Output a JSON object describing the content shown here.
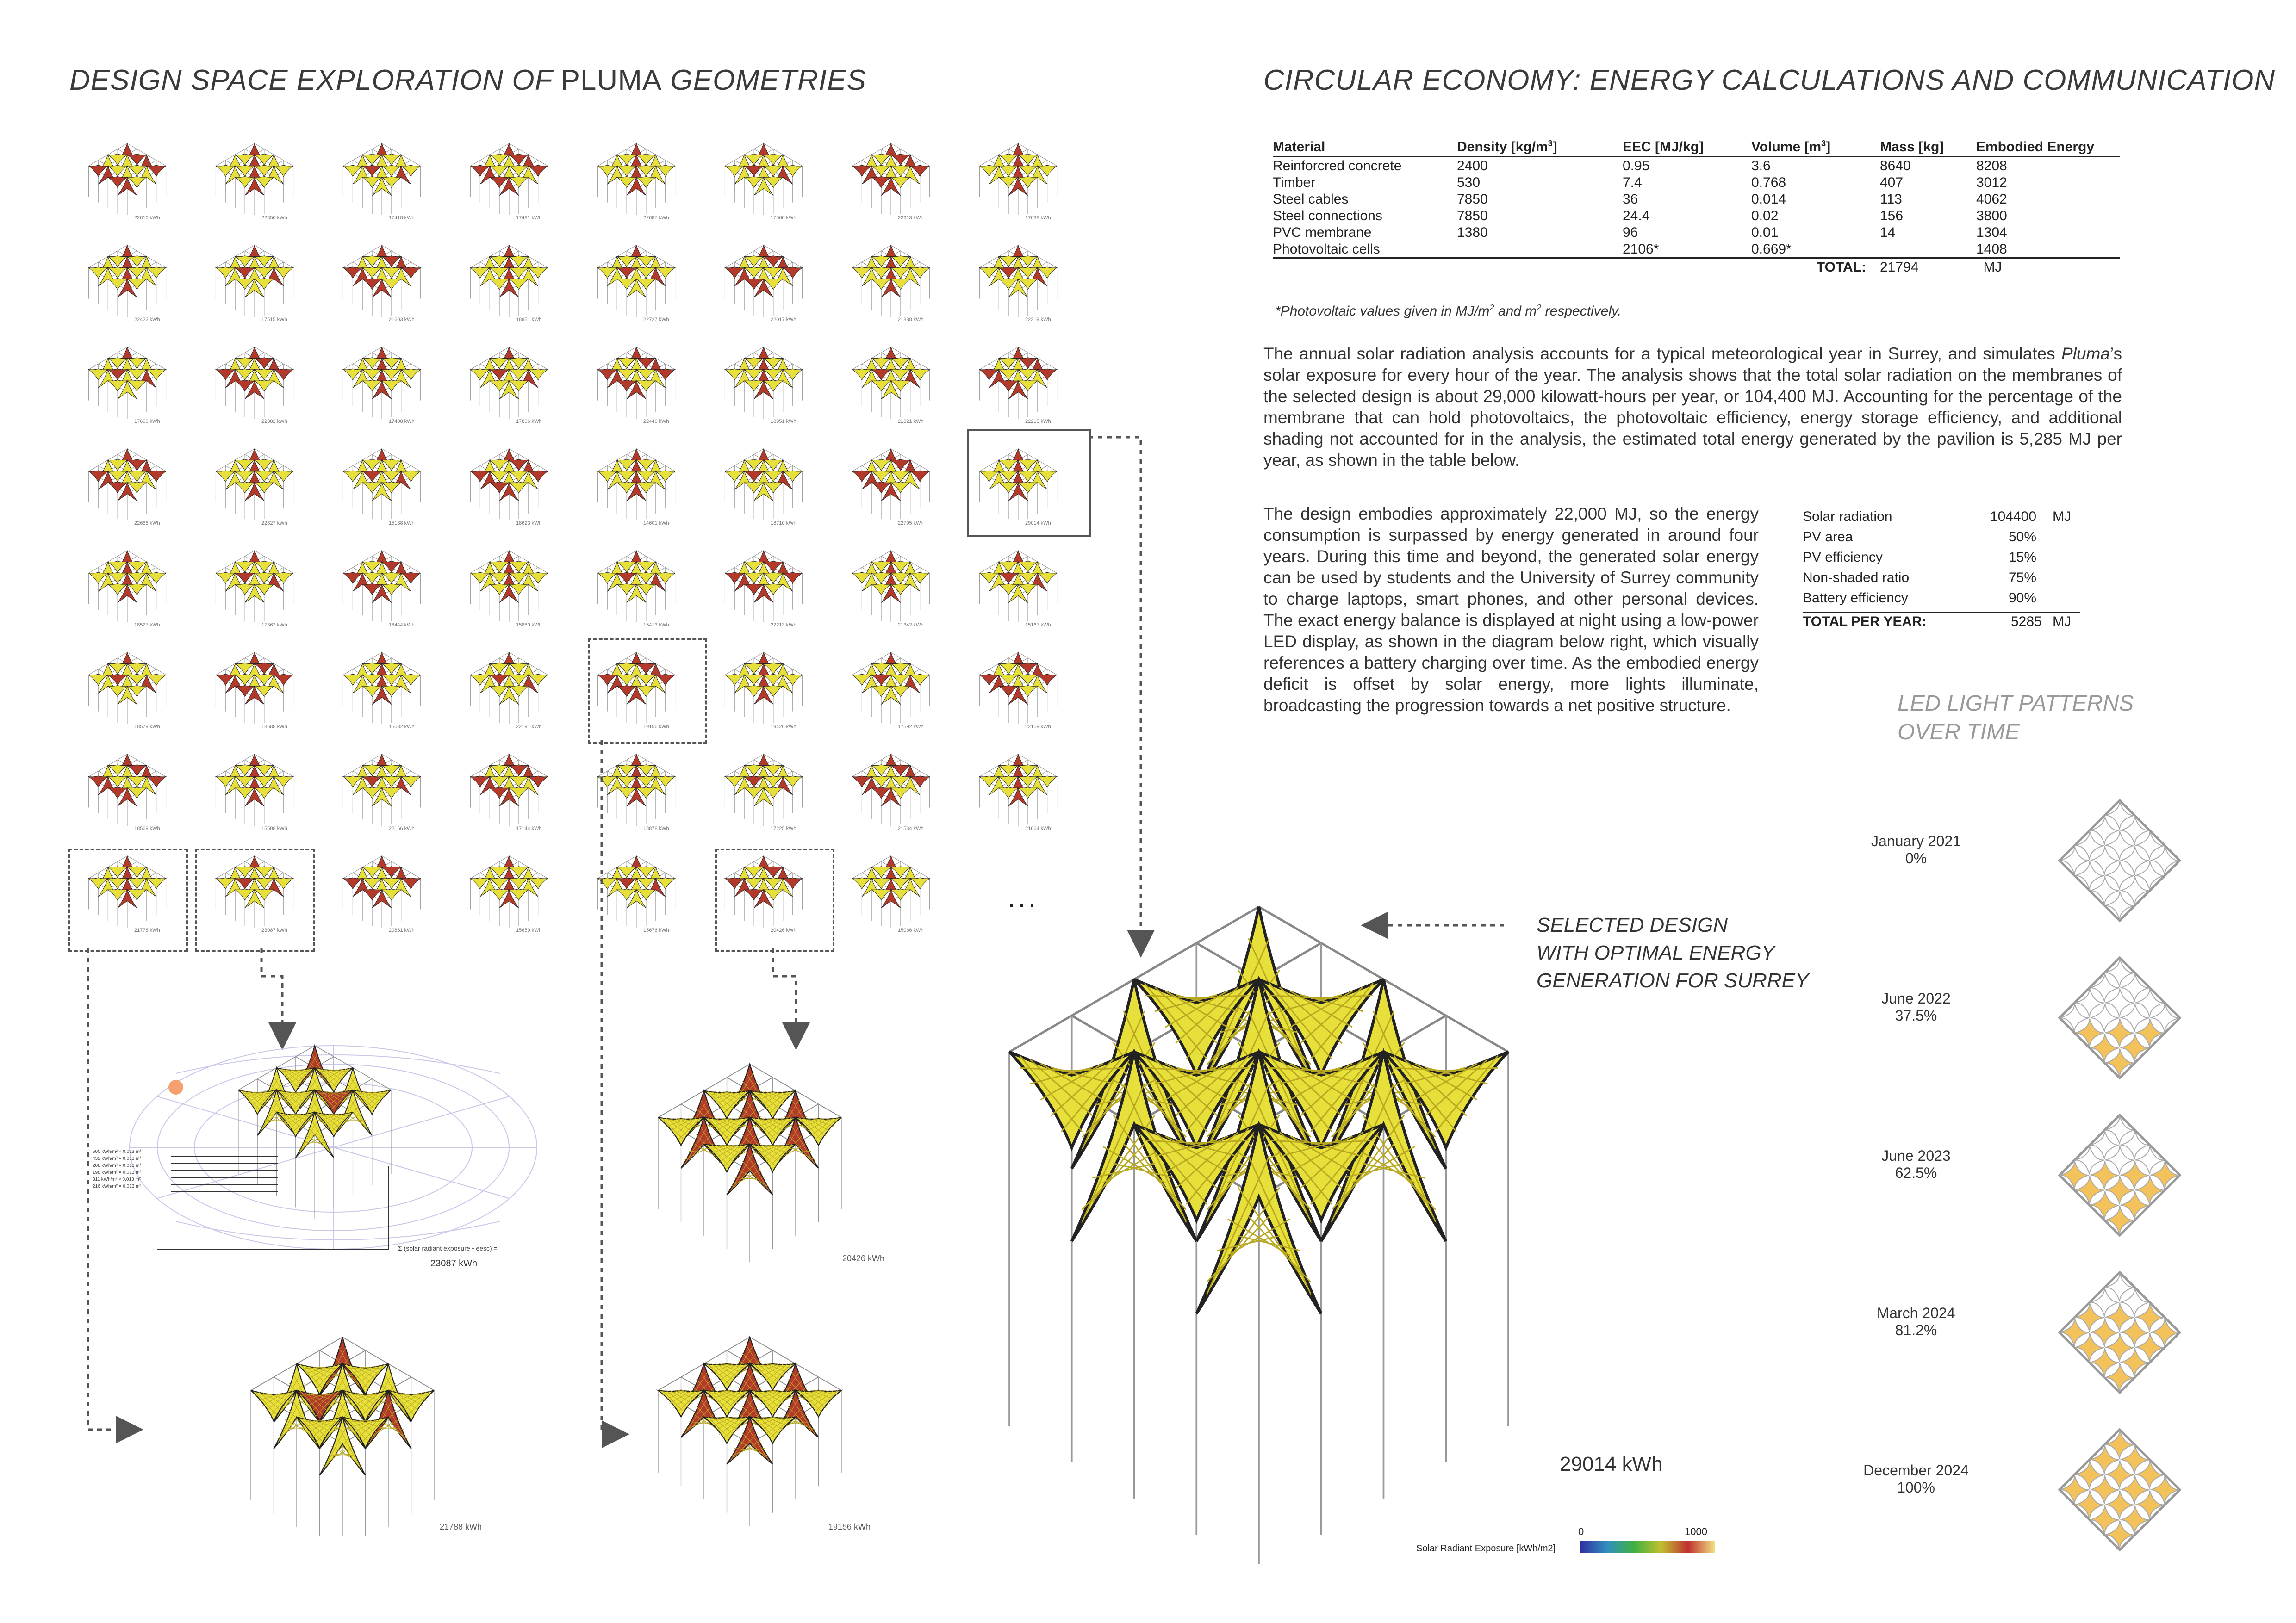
{
  "left_title": {
    "part1": "DESIGN SPACE EXPLORATION OF ",
    "part2": "PLUMA",
    "part3": " GEOMETRIES"
  },
  "right_title": "CIRCULAR ECONOMY: ENERGY CALCULATIONS AND COMMUNICATION",
  "thumb_labels": [
    [
      "22610 kWh",
      "22850 kWh",
      "17418 kWh",
      "17481 kWh",
      "22687 kWh",
      "17560 kWh",
      "22613 kWh",
      "17638 kWh"
    ],
    [
      "22422 kWh",
      "17515 kWh",
      "21603 kWh",
      "18951 kWh",
      "22727 kWh",
      "22017 kWh",
      "21888 kWh",
      "22219 kWh"
    ],
    [
      "17660 kWh",
      "22382 kWh",
      "17408 kWh",
      "17806 kWh",
      "22446 kWh",
      "18951 kWh",
      "21821 kWh",
      "22215 kWh"
    ],
    [
      "22686 kWh",
      "22627 kWh",
      "15188 kWh",
      "18623 kWh",
      "14601 kWh",
      "18710 kWh",
      "22795 kWh",
      "29014 kWh"
    ],
    [
      "18527 kWh",
      "17362 kWh",
      "18444 kWh",
      "15880 kWh",
      "15413 kWh",
      "22213 kWh",
      "21342 kWh",
      "15167 kWh"
    ],
    [
      "18579 kWh",
      "18688 kWh",
      "15032 kWh",
      "22191 kWh",
      "19156 kWh",
      "19426 kWh",
      "17592 kWh",
      "22159 kWh"
    ],
    [
      "18569 kWh",
      "15508 kWh",
      "22166 kWh",
      "17144 kWh",
      "18878 kWh",
      "17225 kWh",
      "21534 kWh",
      "21664 kWh"
    ],
    [
      "21778 kWh",
      "23087 kWh",
      "20881 kWh",
      "15659 kWh",
      "15676 kWh",
      "20426 kWh",
      "15066 kWh",
      ""
    ]
  ],
  "ellipsis": ". . .",
  "material_table": {
    "headers": [
      "Material",
      "Density [kg/m",
      "3",
      "]",
      "EEC [MJ/kg]",
      "Volume [m",
      "3",
      "]",
      "Mass [kg]",
      "Embodied Energy"
    ],
    "rows": [
      {
        "material": "Reinforcred concrete",
        "density": "2400",
        "eec": "0.95",
        "volume": "3.6",
        "mass": "8640",
        "energy": "8208"
      },
      {
        "material": "Timber",
        "density": "530",
        "eec": "7.4",
        "volume": "0.768",
        "mass": "407",
        "energy": "3012"
      },
      {
        "material": "Steel cables",
        "density": "7850",
        "eec": "36",
        "volume": "0.014",
        "mass": "113",
        "energy": "4062"
      },
      {
        "material": "Steel connections",
        "density": "7850",
        "eec": "24.4",
        "volume": "0.02",
        "mass": "156",
        "energy": "3800"
      },
      {
        "material": "PVC membrane",
        "density": "1380",
        "eec": "96",
        "volume": "0.01",
        "mass": "14",
        "energy": "1304"
      },
      {
        "material": "Photovoltaic cells",
        "density": "",
        "eec": "2106*",
        "volume": "0.669*",
        "mass": "",
        "energy": "1408"
      }
    ],
    "total_label": "TOTAL:",
    "total_value": "21794",
    "total_unit": "MJ",
    "footnote_a": "*Photovoltaic values given in MJ/m",
    "footnote_sup": "2",
    "footnote_b": " and m",
    "footnote_sup2": "2",
    "footnote_c": " respectively."
  },
  "para1": {
    "a": "The annual solar radiation analysis accounts for a typical meteorological year in Surrey, and simulates ",
    "pluma": "Pluma",
    "b": "’s solar exposure for every hour of the year. The analysis shows that the total solar radiation on the membranes of the selected design is about 29,000 kilowatt-hours per year, or 104,400 MJ. Accounting for the percentage of the membrane that can hold photovoltaics, the photovoltaic efficiency, energy storage efficiency, and additional shading not accounted for in the analysis, the estimated total energy generated by the pavilion is 5,285 MJ per year, as shown in the table below."
  },
  "para2": "The design embodies approximately 22,000 MJ, so the energy consumption is surpassed by energy generated in around four years. During this time and beyond, the generated solar energy can be used by students and the University of Surrey community to charge laptops, smart phones, and other personal devices. The exact energy balance is displayed at night using a low-power LED display, as shown in the diagram below right, which visually references a battery charging over time. As the embodied energy deficit is offset by solar energy, more lights illuminate, broadcasting the progression towards a net positive structure.",
  "gen_table": {
    "rows": [
      {
        "label": "Solar radiation",
        "value": "104400",
        "unit": "MJ"
      },
      {
        "label": "PV area",
        "value": "50%",
        "unit": ""
      },
      {
        "label": "PV efficiency",
        "value": "15%",
        "unit": ""
      },
      {
        "label": "Non-shaded ratio",
        "value": "75%",
        "unit": ""
      },
      {
        "label": "Battery efficiency",
        "value": "90%",
        "unit": ""
      }
    ],
    "total_label": "TOTAL PER YEAR:",
    "total_value": "5285",
    "total_unit": "MJ"
  },
  "led_title": {
    "line1": "LED LIGHT PATTERNS",
    "line2": "OVER TIME"
  },
  "led_stages": [
    {
      "date": "January 2021",
      "percent": "0%",
      "fill": 0
    },
    {
      "date": "June 2022",
      "percent": "37.5%",
      "fill": 0.375
    },
    {
      "date": "June 2023",
      "percent": "62.5%",
      "fill": 0.625
    },
    {
      "date": "March 2024",
      "percent": "81.2%",
      "fill": 0.812
    },
    {
      "date": "December 2024",
      "percent": "100%",
      "fill": 1.0
    }
  ],
  "selected": {
    "line1": "SELECTED DESIGN",
    "line2": "WITH OPTIMAL ENERGY",
    "line3": "GENERATION FOR SURREY",
    "energy": "29014 kWh"
  },
  "detail_labels": {
    "d1": "23087 kWh",
    "d1_formula": "Σ (solar radiant exposure • eesc) =",
    "d2": "20426 kWh",
    "d3": "21788 kWh",
    "d4": "19156 kWh"
  },
  "legend_lines": [
    "500 kWh/m²  ×  0.013 m²",
    "432 kWh/m²  ×  0.013 m²",
    "208 kWh/m²  ×  0.013 m²",
    "198 kWh/m²  ×  0.013 m²",
    "311 kWh/m²  ×  0.013 m²",
    "216 kWh/m²  ×  0.013 m²"
  ],
  "scale": {
    "min": "0",
    "max": "1000",
    "label": "Solar Radiant Exposure [kWh/m2]"
  },
  "colors": {
    "membrane": "#e8e03a",
    "membrane_dark": "#b8a820",
    "accent_red": "#b33a2a",
    "led_on": "#f3c25a",
    "led_off": "#ffffff"
  }
}
